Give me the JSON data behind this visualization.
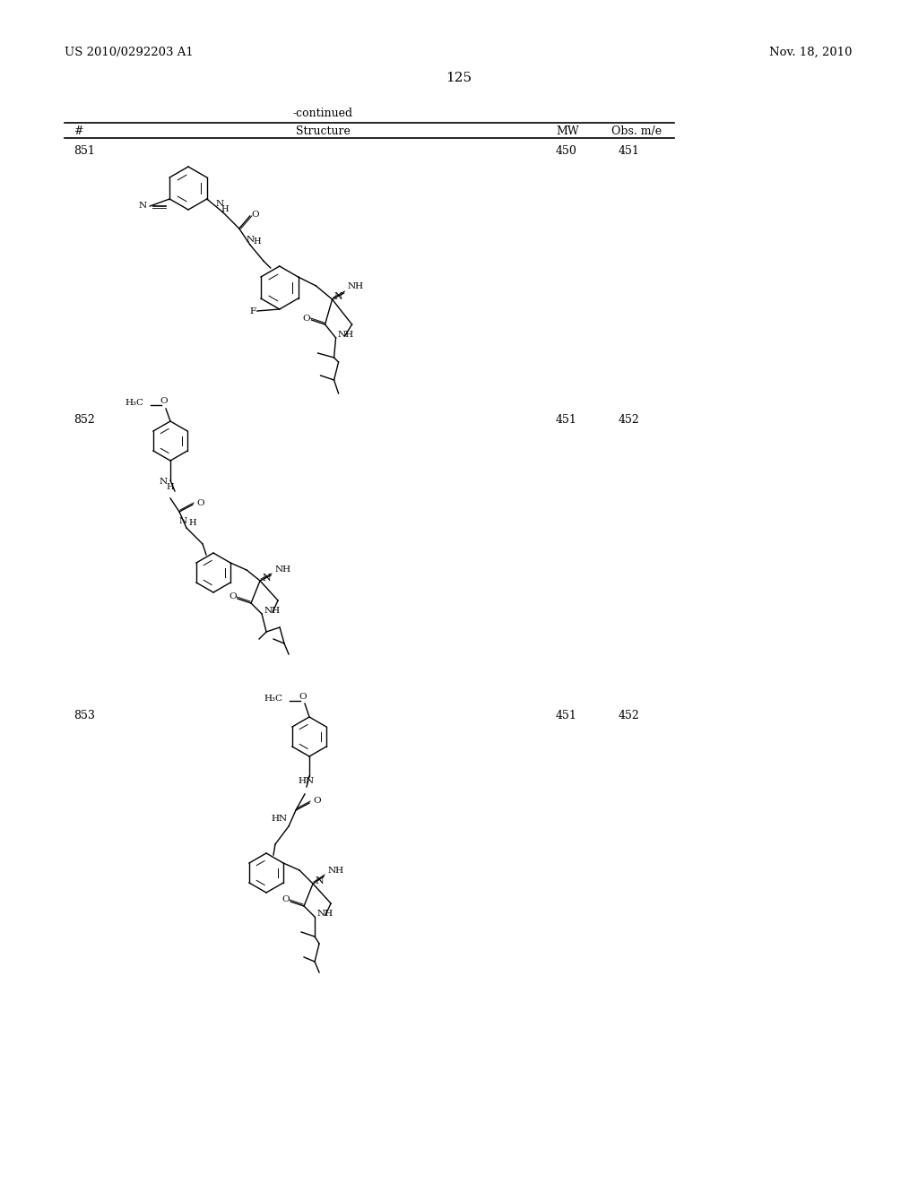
{
  "page_header_left": "US 2010/0292203 A1",
  "page_header_right": "Nov. 18, 2010",
  "page_number": "125",
  "table_header": "-continued",
  "col_headers": [
    "#",
    "Structure",
    "MW",
    "Obs. m/e"
  ],
  "rows": [
    {
      "num": "851",
      "mw": "450",
      "obs": "451"
    },
    {
      "num": "852",
      "mw": "451",
      "obs": "452"
    },
    {
      "num": "853",
      "mw": "451",
      "obs": "452"
    }
  ],
  "background_color": "#ffffff",
  "text_color": "#000000",
  "font_size_header": 9,
  "font_size_body": 8,
  "font_size_page": 9
}
